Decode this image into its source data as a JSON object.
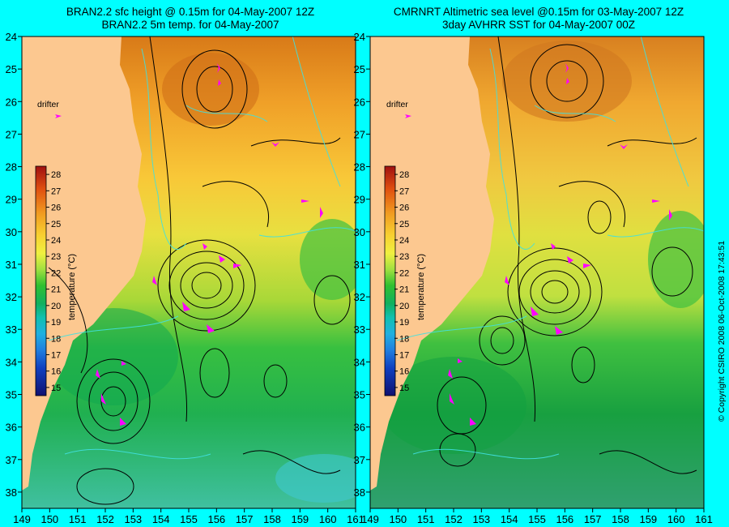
{
  "left_panel": {
    "title_line1": "BRAN2.2 sfc height @ 0.15m for 04-May-2007 12Z",
    "title_line2": "BRAN2.2 5m temp. for 04-May-2007",
    "drifter_label": "drifter"
  },
  "right_panel": {
    "title_line1": "CMRNRT Altimetric sea level  @0.15m  for 03-May-2007 12Z",
    "title_line2": "3day AVHRR SST for 04-May-2007 00Z",
    "drifter_label": "drifter"
  },
  "copyright": "© Copyright CSIRO 2008   06-Oct-2008 17:43:51",
  "chart_data": {
    "type": "heatmap",
    "x_ticks": [
      149,
      150,
      151,
      152,
      153,
      154,
      155,
      156,
      157,
      158,
      159,
      160,
      161
    ],
    "y_ticks": [
      24,
      25,
      26,
      27,
      28,
      29,
      30,
      31,
      32,
      33,
      34,
      35,
      36,
      37,
      38
    ],
    "xlim": [
      149,
      161
    ],
    "ylim": [
      24,
      38.5
    ],
    "colorbar": {
      "label": "temperature (°C)",
      "ticks": [
        28,
        27,
        26,
        25,
        24,
        23,
        22,
        21,
        20,
        19,
        18,
        17,
        16,
        15
      ],
      "range": [
        14.5,
        28.5
      ]
    },
    "colors": {
      "land": "#fcc890",
      "frame": "#00ffff",
      "contour": "#000000",
      "isotherm": "#40e0e0",
      "drifter": "#ff00ff"
    }
  }
}
